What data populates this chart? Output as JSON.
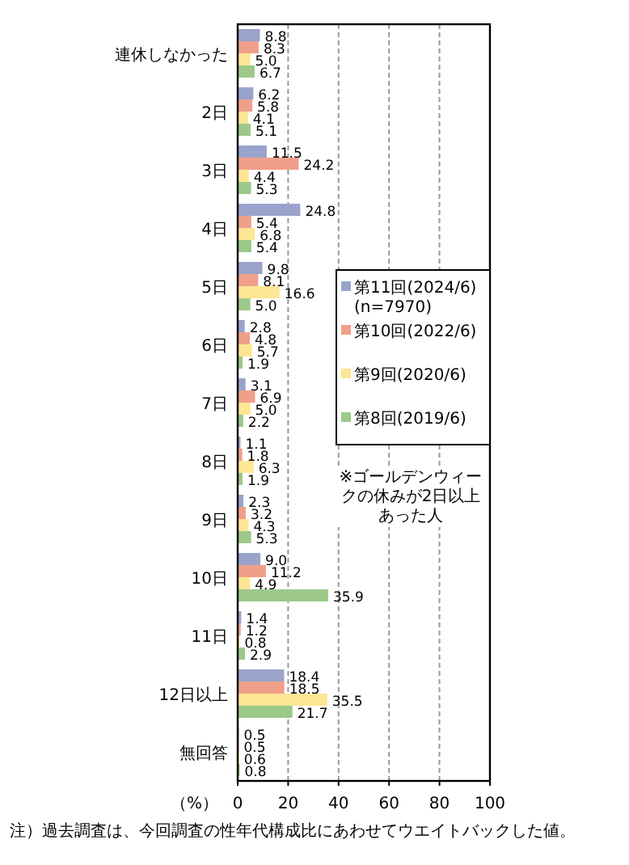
{
  "chart_data": {
    "type": "bar",
    "orientation": "horizontal",
    "categories": [
      "連休しなかった",
      "2日",
      "3日",
      "4日",
      "5日",
      "6日",
      "7日",
      "8日",
      "9日",
      "10日",
      "11日",
      "12日以上",
      "無回答"
    ],
    "series": [
      {
        "name": "第11回(2024/6)\n(n=7970)",
        "color": "#9aa3cc",
        "values": [
          8.8,
          6.2,
          11.5,
          24.8,
          9.8,
          2.8,
          3.1,
          1.1,
          2.3,
          9.0,
          1.4,
          18.4,
          0.5
        ],
        "value_labels": [
          "8.8",
          "6.2",
          "11.5",
          "24.8",
          "9.8",
          "2.8",
          "3.1",
          "1.1",
          "2.3",
          "9.0",
          "1.4",
          "18.4",
          "0.5"
        ]
      },
      {
        "name": "第10回(2022/6)",
        "color": "#f0a08a",
        "values": [
          8.3,
          5.8,
          24.2,
          5.4,
          8.1,
          4.8,
          6.9,
          1.8,
          3.2,
          11.2,
          1.2,
          18.5,
          0.5
        ],
        "value_labels": [
          "8.3",
          "5.8",
          "24.2",
          "5.4",
          "8.1",
          "4.8",
          "6.9",
          "1.8",
          "3.2",
          "11.2",
          "1.2",
          "18.5",
          "0.5"
        ]
      },
      {
        "name": "第9回(2020/6)",
        "color": "#fde694",
        "values": [
          5.0,
          4.1,
          4.4,
          6.8,
          16.6,
          5.7,
          5.0,
          6.3,
          4.3,
          4.9,
          0.8,
          35.5,
          0.6
        ],
        "value_labels": [
          "5.0",
          "4.1",
          "4.4",
          "6.8",
          "16.6",
          "5.7",
          "5.0",
          "6.3",
          "4.3",
          "4.9",
          "0.8",
          "35.5",
          "0.6"
        ]
      },
      {
        "name": "第8回(2019/6)",
        "color": "#9cc98a",
        "values": [
          6.7,
          5.1,
          5.3,
          5.4,
          5.0,
          1.9,
          2.2,
          1.9,
          5.3,
          35.9,
          2.9,
          21.7,
          0.8
        ],
        "value_labels": [
          "6.7",
          "5.1",
          "5.3",
          "5.4",
          "5.0",
          "1.9",
          "2.2",
          "1.9",
          "5.3",
          "35.9",
          "2.9",
          "21.7",
          "0.8"
        ]
      }
    ],
    "xlim": [
      0,
      100
    ],
    "xticks": [
      0,
      20,
      40,
      60,
      80,
      100
    ],
    "xlabel": "（%）",
    "grid": "x",
    "legend": "right",
    "annotations": [
      "※ゴールデンウィークの休みが2日以上あった人",
      "注）過去調査は、今回調査の性年代構成比にあわせてウエイトバックした値。"
    ]
  }
}
